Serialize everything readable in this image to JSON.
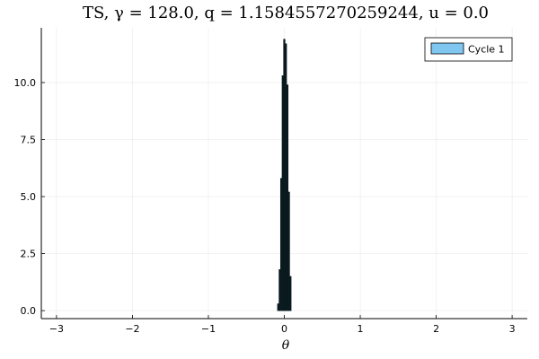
{
  "chart_data": {
    "type": "bar",
    "title": "TS, γ = 128.0, q = 1.1584557270259244, u = 0.0",
    "xlabel": "θ",
    "ylabel": "",
    "xlim": [
      -3.2,
      3.2
    ],
    "ylim": [
      -0.35,
      12.4
    ],
    "x_ticks": [
      -3,
      -2,
      -1,
      0,
      1,
      2,
      3
    ],
    "x_tick_labels": [
      "−3",
      "−2",
      "−1",
      "0",
      "1",
      "2",
      "3"
    ],
    "y_ticks": [
      0,
      2.5,
      5.0,
      7.5,
      10.0
    ],
    "y_tick_labels": [
      "0.0",
      "2.5",
      "5.0",
      "7.5",
      "10.0"
    ],
    "grid": true,
    "legend_position": "top-right",
    "series": [
      {
        "name": "Cycle 1",
        "color": "#7fc6f0",
        "edge_color": "#0a1a1f",
        "bins": [
          -0.09,
          -0.07,
          -0.05,
          -0.03,
          -0.01,
          0.01,
          0.03,
          0.05,
          0.07,
          0.09
        ],
        "values": [
          0.3,
          1.8,
          5.8,
          10.3,
          11.9,
          11.7,
          9.9,
          5.2,
          1.5
        ]
      }
    ]
  }
}
